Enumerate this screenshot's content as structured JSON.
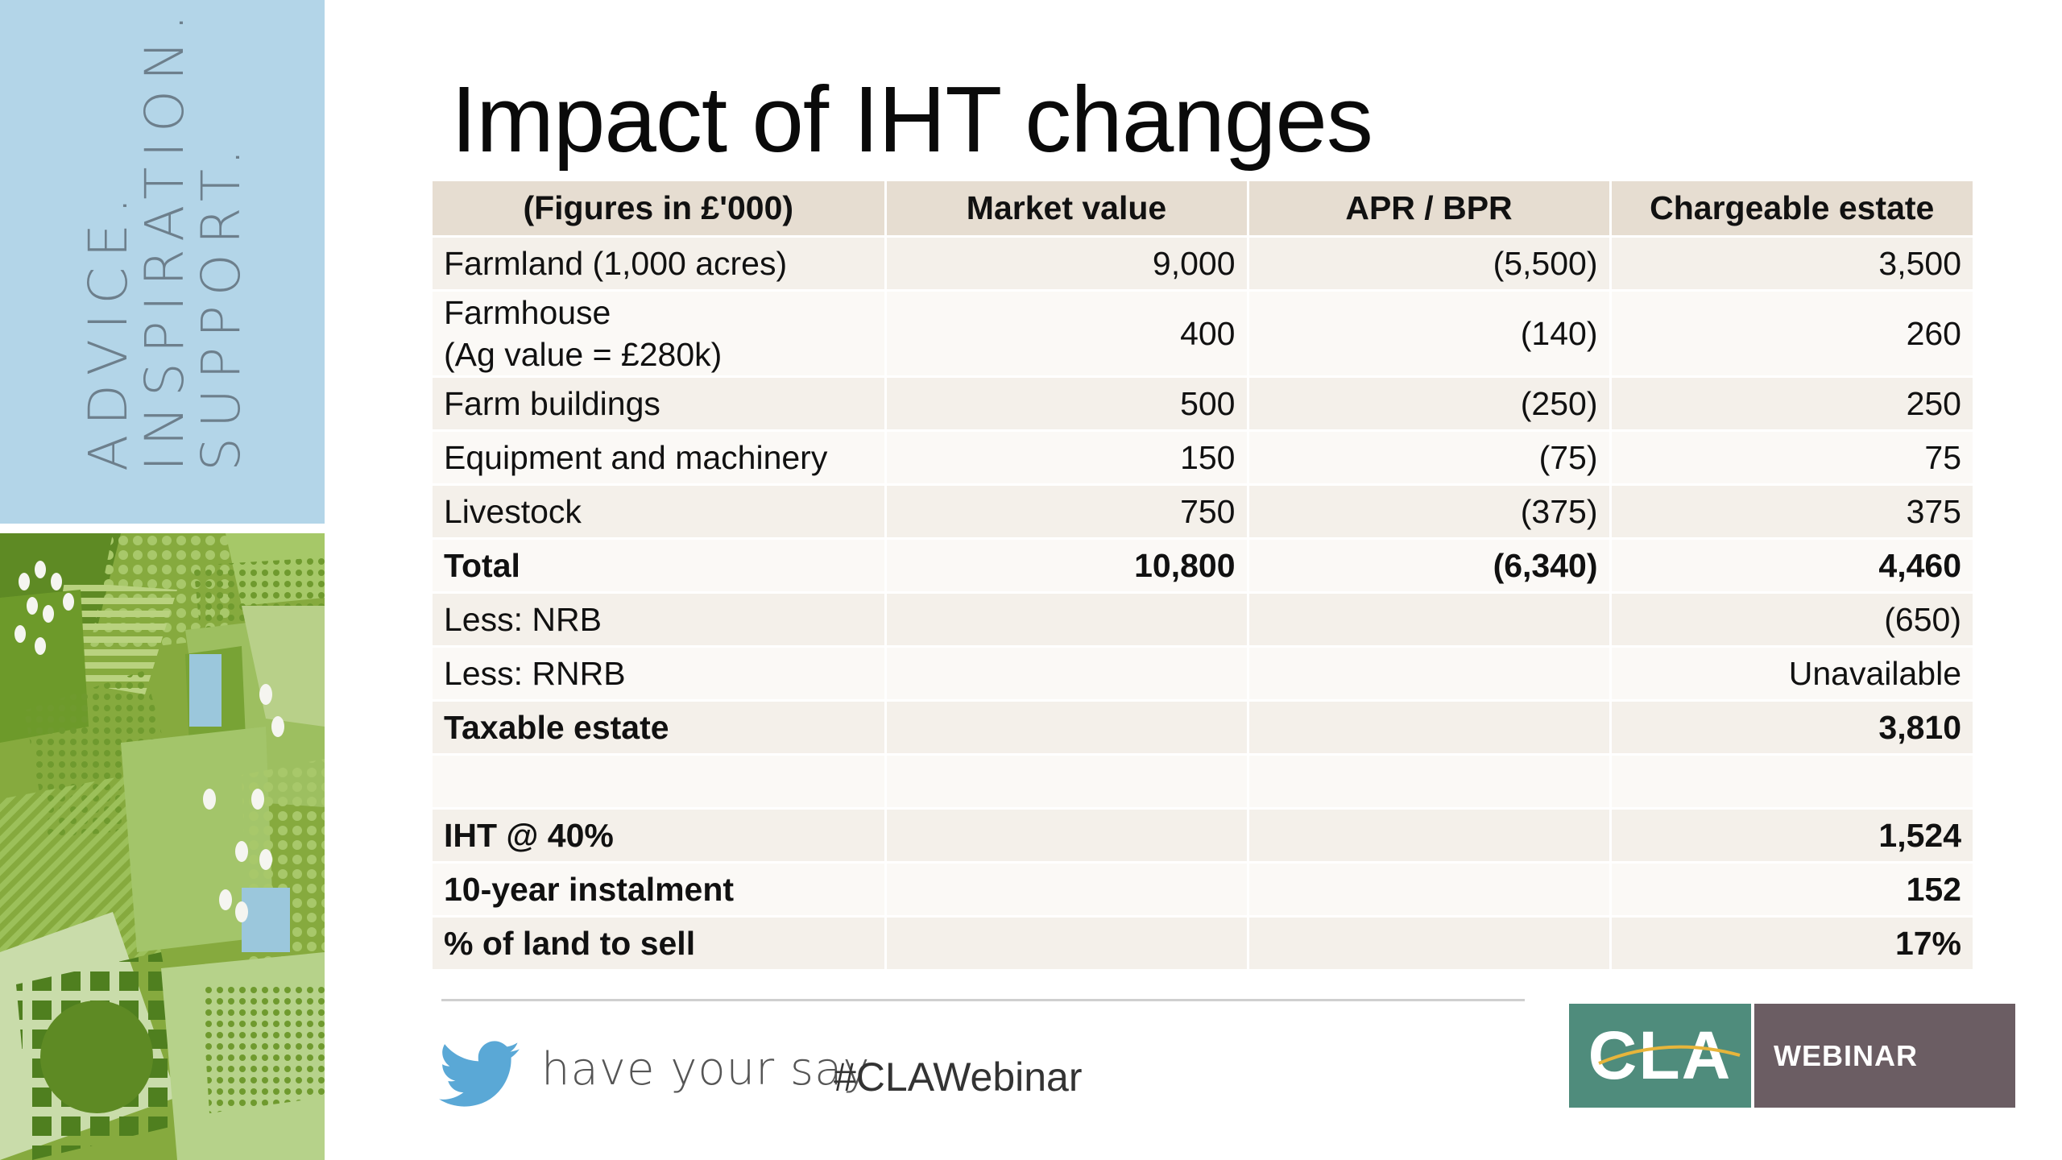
{
  "sidebar": {
    "tagline_lines": [
      "ADVICE.",
      "INSPIRATION.",
      "SUPPORT."
    ]
  },
  "slide": {
    "title": "Impact of IHT changes"
  },
  "table": {
    "headers": [
      "(Figures in £'000)",
      "Market value",
      "APR / BPR",
      "Chargeable estate"
    ],
    "rows": [
      {
        "label": "Farmland (1,000 acres)",
        "market_value": "9,000",
        "apr_bpr": "(5,500)",
        "chargeable": "3,500"
      },
      {
        "label": "Farmhouse",
        "label_line2": "(Ag value = £280k)",
        "market_value": "400",
        "apr_bpr": "(140)",
        "chargeable": "260"
      },
      {
        "label": "Farm buildings",
        "market_value": "500",
        "apr_bpr": "(250)",
        "chargeable": "250"
      },
      {
        "label": "Equipment and machinery",
        "market_value": "150",
        "apr_bpr": "(75)",
        "chargeable": "75"
      },
      {
        "label": "Livestock",
        "market_value": "750",
        "apr_bpr": "(375)",
        "chargeable": "375"
      },
      {
        "label": "Total",
        "market_value": "10,800",
        "apr_bpr": "(6,340)",
        "chargeable": "4,460"
      },
      {
        "label": "Less: NRB",
        "market_value": "",
        "apr_bpr": "",
        "chargeable": "(650)"
      },
      {
        "label": "Less: RNRB",
        "market_value": "",
        "apr_bpr": "",
        "chargeable": "Unavailable"
      },
      {
        "label": "Taxable estate",
        "market_value": "",
        "apr_bpr": "",
        "chargeable": "3,810"
      },
      {
        "label": "",
        "market_value": "",
        "apr_bpr": "",
        "chargeable": ""
      },
      {
        "label": "IHT @ 40%",
        "market_value": "",
        "apr_bpr": "",
        "chargeable": "1,524"
      },
      {
        "label": "10-year instalment",
        "market_value": "",
        "apr_bpr": "",
        "chargeable": "152"
      },
      {
        "label": "% of land to sell",
        "market_value": "",
        "apr_bpr": "",
        "chargeable": "17%"
      }
    ]
  },
  "footer": {
    "have_your_say": "have your say",
    "hashtag": "#CLAWebinar",
    "logo_text": "CLA",
    "badge": "WEBINAR"
  },
  "colors": {
    "sidebar_blue": "#b3d5e8",
    "header_beige": "#e6ddd1",
    "row_odd": "#f4f0ea",
    "row_even": "#fbf9f6",
    "cla_green": "#4f8c7c",
    "webinar_mauve": "#6b5d63",
    "twitter_blue": "#5aa8d6"
  },
  "icons": [
    "twitter-bird-icon"
  ]
}
